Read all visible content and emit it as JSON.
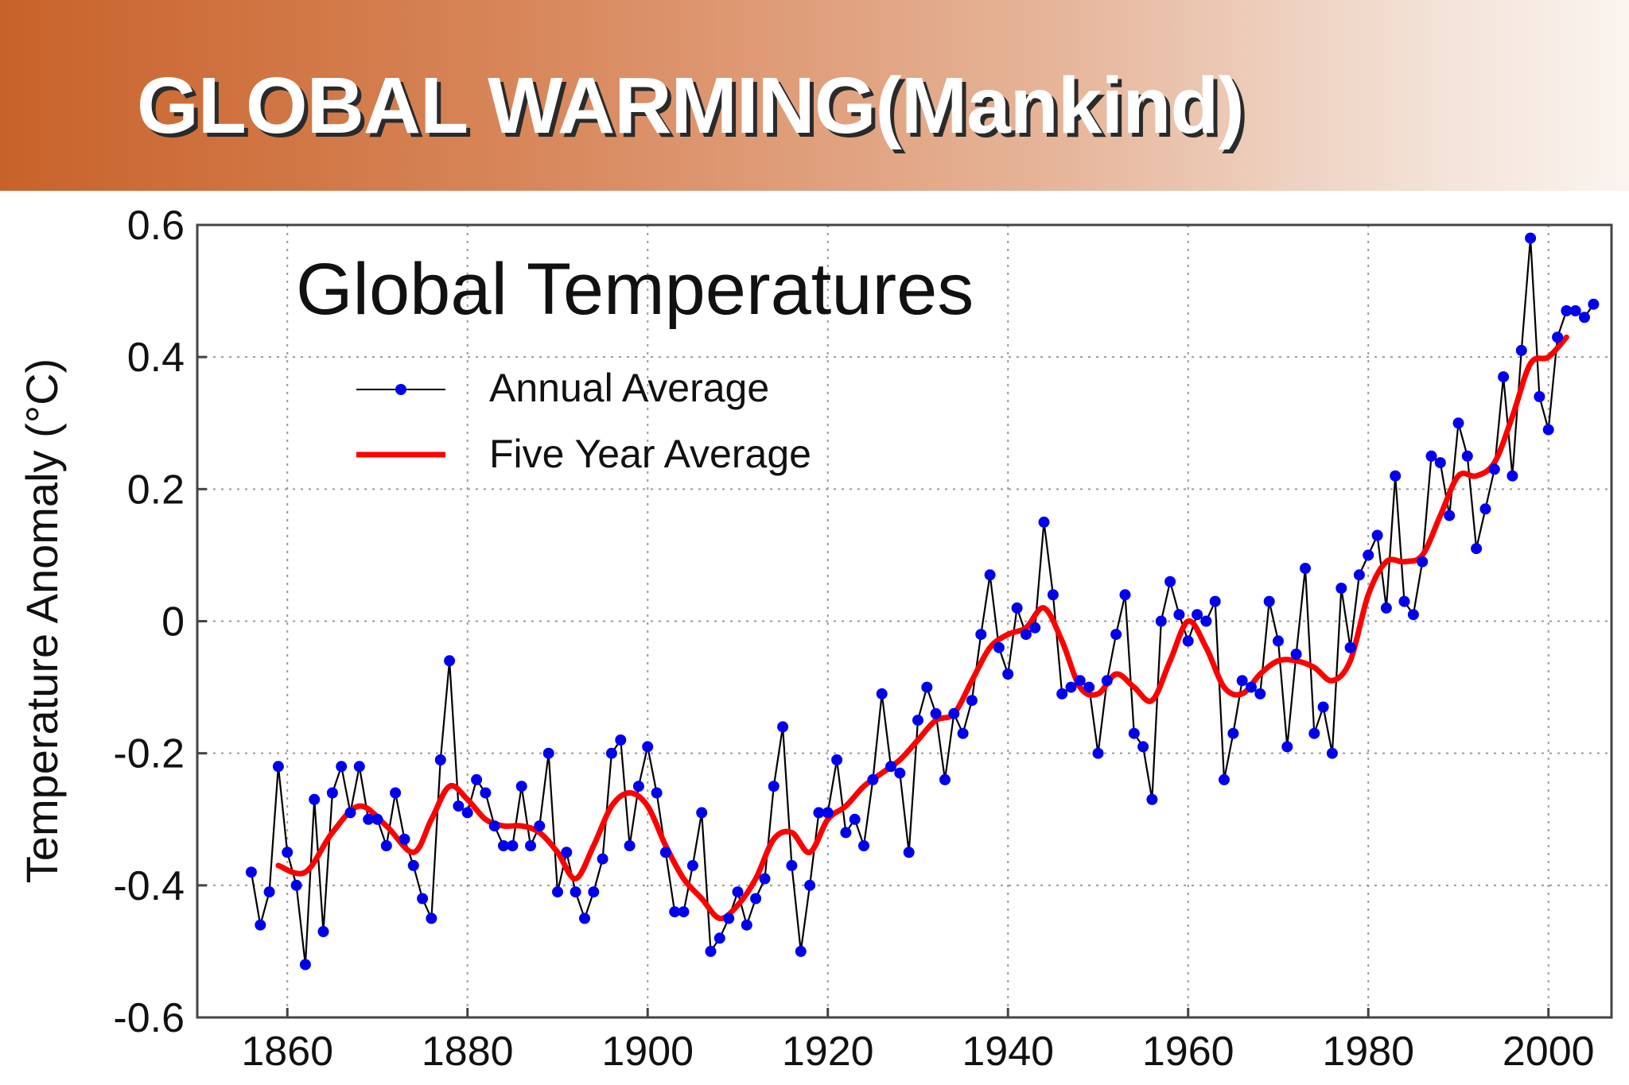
{
  "slide": {
    "title": "GLOBAL WARMING(Mankind)"
  },
  "chart_data": {
    "type": "line",
    "title": "Global Temperatures",
    "xlabel": "",
    "ylabel": "Temperature Anomaly (°C)",
    "xlim": [
      1850,
      2007
    ],
    "ylim": [
      -0.6,
      0.6
    ],
    "x_ticks": [
      1860,
      1880,
      1900,
      1920,
      1940,
      1960,
      1980,
      2000
    ],
    "x_tick_labels": [
      "1860",
      "1880",
      "1900",
      "1920",
      "1940",
      "1960",
      "1980",
      "2000"
    ],
    "y_ticks": [
      0.6,
      0.4,
      0.2,
      0,
      -0.2,
      -0.4,
      -0.6
    ],
    "y_tick_labels": [
      "0.6",
      "0.4",
      "0.2",
      "0",
      "-0.2",
      "-0.4",
      "-0.6"
    ],
    "grid": true,
    "legend_position": "top-left",
    "series": [
      {
        "name": "Annual Average",
        "color": "#0000ee",
        "line_color": "#000000",
        "marker": "dot",
        "x": [
          1856,
          1857,
          1858,
          1859,
          1860,
          1861,
          1862,
          1863,
          1864,
          1865,
          1866,
          1867,
          1868,
          1869,
          1870,
          1871,
          1872,
          1873,
          1874,
          1875,
          1876,
          1877,
          1878,
          1879,
          1880,
          1881,
          1882,
          1883,
          1884,
          1885,
          1886,
          1887,
          1888,
          1889,
          1890,
          1891,
          1892,
          1893,
          1894,
          1895,
          1896,
          1897,
          1898,
          1899,
          1900,
          1901,
          1902,
          1903,
          1904,
          1905,
          1906,
          1907,
          1908,
          1909,
          1910,
          1911,
          1912,
          1913,
          1914,
          1915,
          1916,
          1917,
          1918,
          1919,
          1920,
          1921,
          1922,
          1923,
          1924,
          1925,
          1926,
          1927,
          1928,
          1929,
          1930,
          1931,
          1932,
          1933,
          1934,
          1935,
          1936,
          1937,
          1938,
          1939,
          1940,
          1941,
          1942,
          1943,
          1944,
          1945,
          1946,
          1947,
          1948,
          1949,
          1950,
          1951,
          1952,
          1953,
          1954,
          1955,
          1956,
          1957,
          1958,
          1959,
          1960,
          1961,
          1962,
          1963,
          1964,
          1965,
          1966,
          1967,
          1968,
          1969,
          1970,
          1971,
          1972,
          1973,
          1974,
          1975,
          1976,
          1977,
          1978,
          1979,
          1980,
          1981,
          1982,
          1983,
          1984,
          1985,
          1986,
          1987,
          1988,
          1989,
          1990,
          1991,
          1992,
          1993,
          1994,
          1995,
          1996,
          1997,
          1998,
          1999,
          2000,
          2001,
          2002,
          2003,
          2004,
          2005
        ],
        "y": [
          -0.38,
          -0.46,
          -0.41,
          -0.22,
          -0.35,
          -0.4,
          -0.52,
          -0.27,
          -0.47,
          -0.26,
          -0.22,
          -0.29,
          -0.22,
          -0.3,
          -0.3,
          -0.34,
          -0.26,
          -0.33,
          -0.37,
          -0.42,
          -0.45,
          -0.21,
          -0.06,
          -0.28,
          -0.29,
          -0.24,
          -0.26,
          -0.31,
          -0.34,
          -0.34,
          -0.25,
          -0.34,
          -0.31,
          -0.2,
          -0.41,
          -0.35,
          -0.41,
          -0.45,
          -0.41,
          -0.36,
          -0.2,
          -0.18,
          -0.34,
          -0.25,
          -0.19,
          -0.26,
          -0.35,
          -0.44,
          -0.44,
          -0.37,
          -0.29,
          -0.5,
          -0.48,
          -0.45,
          -0.41,
          -0.46,
          -0.42,
          -0.39,
          -0.25,
          -0.16,
          -0.37,
          -0.5,
          -0.4,
          -0.29,
          -0.29,
          -0.21,
          -0.32,
          -0.3,
          -0.34,
          -0.24,
          -0.11,
          -0.22,
          -0.23,
          -0.35,
          -0.15,
          -0.1,
          -0.14,
          -0.24,
          -0.14,
          -0.17,
          -0.12,
          -0.02,
          0.07,
          -0.04,
          -0.08,
          0.02,
          -0.02,
          -0.01,
          0.15,
          0.04,
          -0.11,
          -0.1,
          -0.09,
          -0.1,
          -0.2,
          -0.09,
          -0.02,
          0.04,
          -0.17,
          -0.19,
          -0.27,
          -0.0,
          0.06,
          0.01,
          -0.03,
          0.01,
          0.0,
          0.03,
          -0.24,
          -0.17,
          -0.09,
          -0.1,
          -0.11,
          0.03,
          -0.03,
          -0.19,
          -0.05,
          0.08,
          -0.17,
          -0.13,
          -0.2,
          0.05,
          -0.04,
          0.07,
          0.1,
          0.13,
          0.02,
          0.22,
          0.03,
          0.01,
          0.09,
          0.25,
          0.24,
          0.16,
          0.3,
          0.25,
          0.11,
          0.17,
          0.23,
          0.37,
          0.22,
          0.41,
          0.58,
          0.34,
          0.29,
          0.43,
          0.47,
          0.47,
          0.46,
          0.48
        ]
      },
      {
        "name": "Five Year Average",
        "color": "#ff0000",
        "x": [
          1859,
          1862,
          1865,
          1868,
          1871,
          1874,
          1876,
          1878,
          1880,
          1882,
          1884,
          1886,
          1888,
          1890,
          1892,
          1894,
          1896,
          1898,
          1900,
          1902,
          1904,
          1906,
          1908,
          1910,
          1912,
          1914,
          1916,
          1918,
          1920,
          1922,
          1924,
          1926,
          1928,
          1930,
          1932,
          1934,
          1936,
          1938,
          1940,
          1942,
          1944,
          1946,
          1948,
          1950,
          1952,
          1954,
          1956,
          1958,
          1960,
          1962,
          1964,
          1966,
          1968,
          1970,
          1972,
          1974,
          1976,
          1978,
          1980,
          1982,
          1984,
          1986,
          1988,
          1990,
          1992,
          1994,
          1996,
          1998,
          2000,
          2002
        ],
        "y": [
          -0.37,
          -0.38,
          -0.32,
          -0.28,
          -0.31,
          -0.35,
          -0.3,
          -0.25,
          -0.27,
          -0.3,
          -0.31,
          -0.31,
          -0.32,
          -0.35,
          -0.39,
          -0.34,
          -0.28,
          -0.26,
          -0.28,
          -0.34,
          -0.39,
          -0.42,
          -0.45,
          -0.43,
          -0.39,
          -0.33,
          -0.32,
          -0.35,
          -0.3,
          -0.28,
          -0.25,
          -0.23,
          -0.21,
          -0.18,
          -0.15,
          -0.14,
          -0.09,
          -0.04,
          -0.02,
          -0.01,
          0.02,
          -0.03,
          -0.1,
          -0.11,
          -0.08,
          -0.1,
          -0.12,
          -0.06,
          0.0,
          -0.04,
          -0.1,
          -0.11,
          -0.08,
          -0.06,
          -0.06,
          -0.07,
          -0.09,
          -0.06,
          0.04,
          0.09,
          0.09,
          0.1,
          0.16,
          0.22,
          0.22,
          0.24,
          0.31,
          0.39,
          0.4,
          0.43
        ]
      }
    ]
  }
}
